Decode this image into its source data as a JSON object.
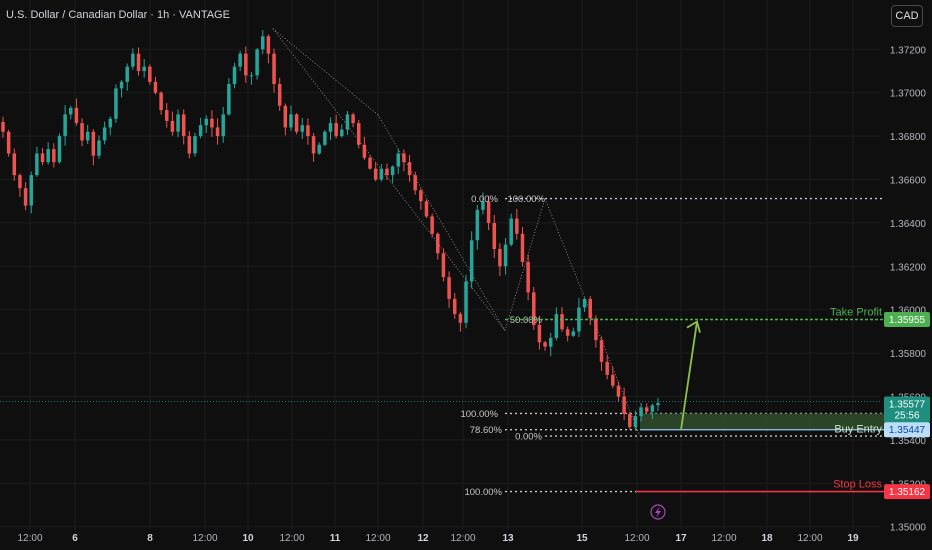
{
  "header": {
    "title": "U.S. Dollar / Canadian Dollar · 1h · VANTAGE",
    "currency": "CAD"
  },
  "colors": {
    "bg": "#0f0f0f",
    "up": "#26a69a",
    "down": "#ef5350",
    "grid": "#1c1c1c",
    "axis_text": "#b2b5be",
    "tp": "#4caf50",
    "sl": "#f23645",
    "entry_zone": "#2f4a2a",
    "fib": "#c8c8c8",
    "price_tag": "#1e8e7e",
    "entry_tag": "#bbdefb"
  },
  "chart_data": {
    "type": "candlestick",
    "symbol": "USDCAD",
    "interval": "1h",
    "x_tick_labels": [
      "12:00",
      "6",
      "8",
      "12:00",
      "10",
      "12:00",
      "11",
      "12:00",
      "12",
      "12:00",
      "13",
      "15",
      "12:00",
      "17",
      "12:00",
      "18",
      "12:00",
      "19"
    ],
    "y_tick_labels": [
      "1.37200",
      "1.37000",
      "1.36800",
      "1.36600",
      "1.36400",
      "1.36200",
      "1.36000",
      "1.35800",
      "1.35600",
      "1.35400",
      "1.35200",
      "1.35000"
    ],
    "ylim": [
      1.34985,
      1.37335
    ],
    "close_path": [
      1.3682,
      1.3672,
      1.3662,
      1.3656,
      1.3648,
      1.3662,
      1.3672,
      1.3668,
      1.3674,
      1.3668,
      1.368,
      1.369,
      1.3693,
      1.3686,
      1.3678,
      1.3682,
      1.3671,
      1.3678,
      1.3684,
      1.3688,
      1.3702,
      1.3705,
      1.3712,
      1.3718,
      1.371,
      1.3712,
      1.3705,
      1.37,
      1.3692,
      1.3687,
      1.3682,
      1.369,
      1.368,
      1.3672,
      1.368,
      1.3685,
      1.3688,
      1.3684,
      1.368,
      1.369,
      1.3704,
      1.3712,
      1.3718,
      1.3708,
      1.3708,
      1.372,
      1.3726,
      1.3718,
      1.3704,
      1.3694,
      1.3684,
      1.369,
      1.3682,
      1.3685,
      1.368,
      1.3672,
      1.3676,
      1.3682,
      1.3686,
      1.368,
      1.3683,
      1.369,
      1.3686,
      1.3676,
      1.367,
      1.3665,
      1.366,
      1.3665,
      1.3662,
      1.3666,
      1.3672,
      1.3668,
      1.3662,
      1.3655,
      1.365,
      1.3643,
      1.3635,
      1.3626,
      1.3615,
      1.3605,
      1.3598,
      1.3594,
      1.3613,
      1.3632,
      1.3646,
      1.365,
      1.364,
      1.3628,
      1.362,
      1.363,
      1.3642,
      1.3635,
      1.3622,
      1.3608,
      1.3593,
      1.3585,
      1.3583,
      1.3587,
      1.3598,
      1.3591,
      1.3588,
      1.359,
      1.3601,
      1.3605,
      1.3596,
      1.3586,
      1.3576,
      1.357,
      1.3565,
      1.356,
      1.3552,
      1.3546,
      1.3551,
      1.3555,
      1.3553,
      1.3556,
      1.3557
    ],
    "last_price": "1.35577",
    "countdown": "25:56",
    "levels": [
      {
        "name": "Take Profit",
        "price_label": "1.35955",
        "price": 1.35955
      },
      {
        "name": "Buy Entry",
        "price_label": "1.35447",
        "price": 1.35447
      },
      {
        "name": "Stop Loss",
        "price_label": "1.35162",
        "price": 1.35162
      }
    ],
    "fib_sets": [
      {
        "labels": [
          {
            "text": "0.00%",
            "price": 1.36512
          },
          {
            "text": "100.00%",
            "price": 1.36512
          },
          {
            "text": "50.00%",
            "price": 1.35955
          }
        ]
      },
      {
        "labels": [
          {
            "text": "100.00%",
            "price": 1.35522
          },
          {
            "text": "78.60%",
            "price": 1.35447
          },
          {
            "text": "0.00%",
            "price": 1.35418
          }
        ]
      },
      {
        "labels": [
          {
            "text": "100.00%",
            "price": 1.35162
          }
        ]
      }
    ]
  }
}
